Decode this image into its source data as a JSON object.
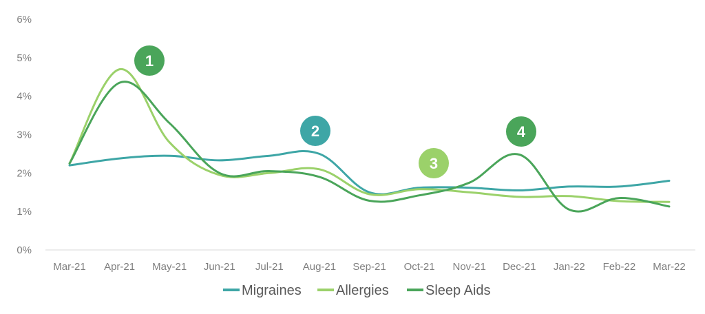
{
  "chart_data": {
    "type": "line",
    "categories": [
      "Mar-21",
      "Apr-21",
      "May-21",
      "Jun-21",
      "Jul-21",
      "Aug-21",
      "Sep-21",
      "Oct-21",
      "Nov-21",
      "Dec-21",
      "Jan-22",
      "Feb-22",
      "Mar-22"
    ],
    "y_ticks": [
      "0%",
      "1%",
      "2%",
      "3%",
      "4%",
      "5%",
      "6%"
    ],
    "ylim": [
      0,
      6
    ],
    "grid": false,
    "legend_position": "bottom",
    "series": [
      {
        "name": "Migraines",
        "color": "#3ea6a6",
        "values": [
          2.2,
          2.38,
          2.45,
          2.33,
          2.45,
          2.5,
          1.5,
          1.62,
          1.62,
          1.55,
          1.65,
          1.65,
          1.8
        ]
      },
      {
        "name": "Allergies",
        "color": "#9bd16a",
        "values": [
          2.25,
          4.7,
          2.8,
          1.95,
          2.0,
          2.1,
          1.45,
          1.58,
          1.5,
          1.38,
          1.4,
          1.27,
          1.25
        ]
      },
      {
        "name": "Sleep Aids",
        "color": "#4aa55a",
        "values": [
          2.25,
          4.35,
          3.3,
          2.0,
          2.05,
          1.9,
          1.28,
          1.42,
          1.75,
          2.48,
          1.05,
          1.35,
          1.13
        ]
      }
    ],
    "annotations": [
      {
        "label": "1",
        "series": "Sleep Aids",
        "color": "#4aa55a"
      },
      {
        "label": "2",
        "series": "Migraines",
        "color": "#3ea6a6"
      },
      {
        "label": "3",
        "series": "Allergies",
        "color": "#9bd16a"
      },
      {
        "label": "4",
        "series": "Sleep Aids",
        "color": "#4aa55a"
      }
    ]
  }
}
